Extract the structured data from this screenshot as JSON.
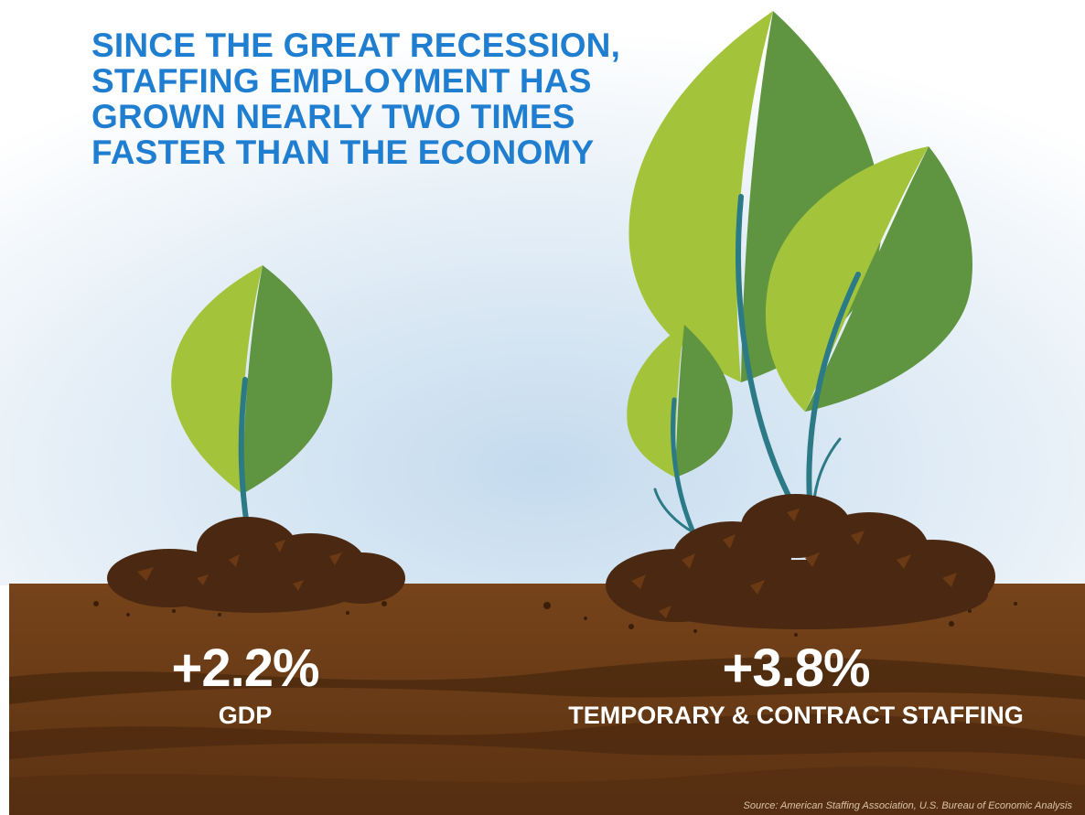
{
  "headline": {
    "lines": [
      "SINCE THE GREAT RECESSION,",
      "STAFFING EMPLOYMENT HAS",
      "GROWN NEARLY TWO TIMES",
      "FASTER THAN THE ECONOMY"
    ]
  },
  "stats": [
    {
      "value": "+2.2%",
      "label": "GDP"
    },
    {
      "value": "+3.8%",
      "label": "TEMPORARY & CONTRACT STAFFING"
    }
  ],
  "source": "Source: American Staffing Association,  U.S. Bureau of Economic Analysis",
  "colors": {
    "headline": "#1f7ed0",
    "leaf_light": "#a3c43a",
    "leaf_dark": "#5f9440",
    "stem": "#2b7a86",
    "soil": "#4a2811",
    "ground": "#6b3d13",
    "stat_text": "#ffffff"
  }
}
